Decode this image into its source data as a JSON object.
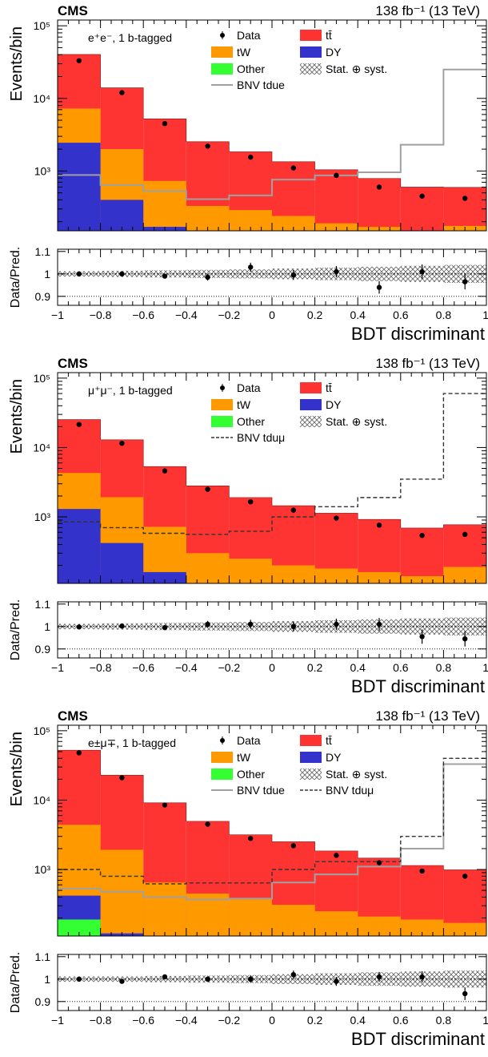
{
  "colors": {
    "ttbar": "#fe3433",
    "tW": "#fe9a00",
    "other": "#33ff33",
    "dy": "#3333cc",
    "bnv_tdue": "#a0a0a0",
    "bnv_tdumu": "#333333",
    "data": "#000000"
  },
  "legend_labels": {
    "data": "Data",
    "ttbar": "tt̄",
    "tW": "tW",
    "dy": "DY",
    "other": "Other",
    "unc": "Stat. ⊕ syst.",
    "bnv_tdue": "BNV tdue",
    "bnv_tdumu": "BNV tduμ"
  },
  "chart_data": [
    {
      "type": "bar",
      "panel_label": "CMS",
      "lumi_label": "138 fb⁻¹ (13 TeV)",
      "channel_label": "e⁺e⁻, 1 b-tagged",
      "ylabel": "Events/bin",
      "ratio_ylabel": "Data/Pred.",
      "xlabel": "BDT discriminant",
      "x_ticks": [
        "−1",
        "−0.8",
        "−0.6",
        "−0.4",
        "−0.2",
        "0",
        "0.2",
        "0.4",
        "0.6",
        "0.8",
        "1"
      ],
      "y_ticks": [
        "10³",
        "10⁴",
        "10⁵"
      ],
      "ratio_ticks": [
        "0.9",
        "1",
        "1.1"
      ],
      "xlim": [
        -1,
        1
      ],
      "ylim_log": [
        150,
        120000
      ],
      "ratio_ylim": [
        0.86,
        1.11
      ],
      "bin_edges": [
        -1,
        -0.8,
        -0.6,
        -0.4,
        -0.2,
        0,
        0.2,
        0.4,
        0.6,
        0.8,
        1
      ],
      "stack": [
        {
          "key": "other",
          "values": [
            150,
            0,
            0,
            0,
            0,
            0,
            0,
            0,
            0,
            0
          ]
        },
        {
          "key": "dy",
          "values": [
            2300,
            400,
            170,
            0,
            0,
            0,
            0,
            0,
            0,
            0
          ]
        },
        {
          "key": "tW",
          "values": [
            4800,
            1600,
            560,
            330,
            290,
            240,
            190,
            170,
            140,
            175
          ]
        },
        {
          "key": "ttbar",
          "values": [
            33000,
            12000,
            4500,
            2200,
            1550,
            1100,
            850,
            620,
            460,
            420
          ]
        }
      ],
      "signals": [
        {
          "key": "bnv_tdue",
          "style": "solid",
          "values": [
            880,
            640,
            530,
            410,
            460,
            760,
            870,
            960,
            2300,
            25000
          ]
        }
      ],
      "data": [
        33000,
        12000,
        4500,
        2200,
        1550,
        1100,
        870,
        600,
        450,
        420
      ],
      "ratio": [
        1.0,
        1.0,
        0.99,
        0.985,
        1.03,
        0.995,
        1.01,
        0.94,
        1.01,
        0.965
      ],
      "ratio_err": [
        0.007,
        0.008,
        0.01,
        0.015,
        0.02,
        0.022,
        0.025,
        0.028,
        0.032,
        0.034
      ],
      "unc_band": [
        0.012,
        0.014,
        0.016,
        0.018,
        0.02,
        0.024,
        0.028,
        0.032,
        0.036,
        0.04
      ],
      "legend_keys": [
        "data",
        "ttbar",
        "tW",
        "dy",
        "other",
        "unc",
        "bnv_tdue"
      ]
    },
    {
      "type": "bar",
      "panel_label": "CMS",
      "lumi_label": "138 fb⁻¹ (13 TeV)",
      "channel_label": "μ⁺μ⁻, 1 b-tagged",
      "ylabel": "Events/bin",
      "ratio_ylabel": "Data/Pred.",
      "xlabel": "BDT discriminant",
      "x_ticks": [
        "−1",
        "−0.8",
        "−0.6",
        "−0.4",
        "−0.2",
        "0",
        "0.2",
        "0.4",
        "0.6",
        "0.8",
        "1"
      ],
      "y_ticks": [
        "10³",
        "10⁴",
        "10⁵"
      ],
      "ratio_ticks": [
        "0.9",
        "1",
        "1.1"
      ],
      "xlim": [
        -1,
        1
      ],
      "ylim_log": [
        110,
        120000
      ],
      "ratio_ylim": [
        0.86,
        1.11
      ],
      "bin_edges": [
        -1,
        -0.8,
        -0.6,
        -0.4,
        -0.2,
        0,
        0.2,
        0.4,
        0.6,
        0.8,
        1
      ],
      "stack": [
        {
          "key": "other",
          "values": [
            0,
            0,
            0,
            0,
            0,
            0,
            0,
            0,
            0,
            0
          ]
        },
        {
          "key": "dy",
          "values": [
            1300,
            420,
            160,
            0,
            0,
            0,
            0,
            0,
            0,
            0
          ]
        },
        {
          "key": "tW",
          "values": [
            3000,
            1500,
            560,
            300,
            250,
            200,
            180,
            160,
            140,
            190
          ]
        },
        {
          "key": "ttbar",
          "values": [
            21000,
            11000,
            4600,
            2500,
            1650,
            1250,
            950,
            760,
            550,
            580
          ]
        }
      ],
      "signals": [
        {
          "key": "bnv_tdumu",
          "style": "dashed",
          "values": [
            850,
            700,
            580,
            560,
            620,
            1000,
            1400,
            1900,
            3500,
            60000
          ]
        }
      ],
      "data": [
        21500,
        11500,
        4600,
        2500,
        1650,
        1250,
        960,
        760,
        540,
        560
      ],
      "ratio": [
        0.998,
        1.002,
        0.995,
        1.01,
        1.01,
        1.0,
        1.01,
        1.01,
        0.955,
        0.945
      ],
      "ratio_err": [
        0.007,
        0.008,
        0.01,
        0.015,
        0.02,
        0.022,
        0.025,
        0.028,
        0.032,
        0.034
      ],
      "unc_band": [
        0.012,
        0.014,
        0.016,
        0.018,
        0.02,
        0.024,
        0.028,
        0.032,
        0.036,
        0.04
      ],
      "legend_keys": [
        "data",
        "ttbar",
        "tW",
        "dy",
        "other",
        "unc",
        "bnv_tdumu"
      ]
    },
    {
      "type": "bar",
      "panel_label": "CMS",
      "lumi_label": "138 fb⁻¹ (13 TeV)",
      "channel_label": "e±μ∓, 1 b-tagged",
      "ylabel": "Events/bin",
      "ratio_ylabel": "Data/Pred.",
      "xlabel": "BDT discriminant",
      "x_ticks": [
        "−1",
        "−0.8",
        "−0.6",
        "−0.4",
        "−0.2",
        "0",
        "0.2",
        "0.4",
        "0.6",
        "0.8",
        "1"
      ],
      "y_ticks": [
        "10³",
        "10⁴",
        "10⁵"
      ],
      "ratio_ticks": [
        "0.9",
        "1",
        "1.1"
      ],
      "xlim": [
        -1,
        1
      ],
      "ylim_log": [
        110,
        120000
      ],
      "ratio_ylim": [
        0.86,
        1.11
      ],
      "bin_edges": [
        -1,
        -0.8,
        -0.6,
        -0.4,
        -0.2,
        0,
        0.2,
        0.4,
        0.6,
        0.8,
        1
      ],
      "stack": [
        {
          "key": "other",
          "values": [
            190,
            0,
            0,
            0,
            0,
            0,
            0,
            0,
            0,
            0
          ]
        },
        {
          "key": "dy",
          "values": [
            230,
            120,
            0,
            0,
            0,
            0,
            0,
            0,
            0,
            0
          ]
        },
        {
          "key": "tW",
          "values": [
            4000,
            1800,
            650,
            450,
            370,
            310,
            250,
            210,
            190,
            170
          ]
        },
        {
          "key": "ttbar",
          "values": [
            48000,
            21000,
            8500,
            4500,
            2800,
            2200,
            1600,
            1250,
            950,
            820
          ]
        }
      ],
      "signals": [
        {
          "key": "bnv_tdue",
          "style": "solid",
          "values": [
            530,
            480,
            400,
            370,
            380,
            650,
            850,
            1100,
            2000,
            33000
          ]
        },
        {
          "key": "bnv_tdumu",
          "style": "dashed",
          "values": [
            1000,
            800,
            620,
            640,
            640,
            1000,
            1300,
            1300,
            3000,
            40000
          ]
        }
      ],
      "data": [
        48000,
        21000,
        8500,
        4500,
        2800,
        2200,
        1600,
        1250,
        950,
        800
      ],
      "ratio": [
        1.0,
        0.99,
        1.01,
        1.0,
        1.0,
        1.02,
        0.99,
        1.01,
        1.01,
        0.935
      ],
      "ratio_err": [
        0.007,
        0.008,
        0.01,
        0.012,
        0.015,
        0.018,
        0.02,
        0.022,
        0.025,
        0.028
      ],
      "unc_band": [
        0.012,
        0.012,
        0.014,
        0.016,
        0.018,
        0.022,
        0.026,
        0.03,
        0.034,
        0.038
      ],
      "legend_keys": [
        "data",
        "ttbar",
        "tW",
        "dy",
        "other",
        "unc",
        "bnv_tdue",
        "bnv_tdumu"
      ]
    }
  ]
}
